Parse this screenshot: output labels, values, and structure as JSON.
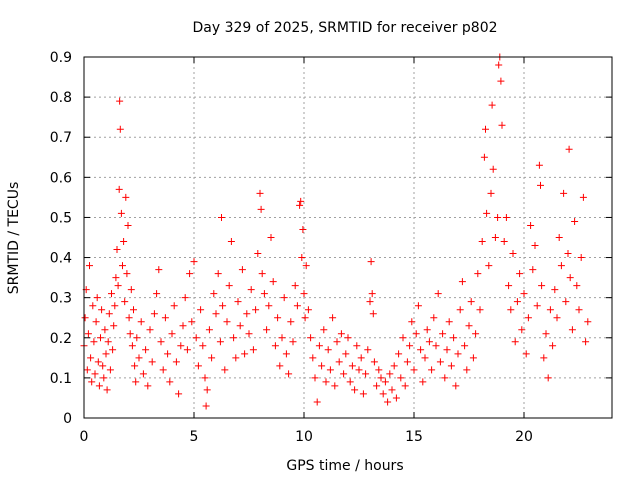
{
  "colors": {
    "marker": "#ff0000",
    "grid": "#a0a0a0",
    "axis": "#000000",
    "background": "#ffffff"
  },
  "chart_data": {
    "type": "scatter",
    "title": "Day 329 of 2025, SRMTID for receiver p802",
    "xlabel": "GPS time / hours",
    "ylabel": "SRMTID / TECUs",
    "xlim": [
      0,
      24
    ],
    "ylim": [
      0,
      0.9
    ],
    "xticks": [
      0,
      5,
      10,
      15,
      20
    ],
    "xtick_labels": [
      "0",
      "5",
      "10",
      "15",
      "20"
    ],
    "yticks": [
      0,
      0.1,
      0.2,
      0.3,
      0.4,
      0.5,
      0.6,
      0.7,
      0.8,
      0.9
    ],
    "ytick_labels": [
      "0",
      "0.1",
      "0.2",
      "0.3",
      "0.4",
      "0.5",
      "0.6",
      "0.7",
      "0.8",
      "0.9"
    ],
    "grid": true,
    "marker": "plus",
    "series": [
      {
        "name": "SRMTID",
        "points": [
          [
            0.0,
            0.18
          ],
          [
            0.05,
            0.25
          ],
          [
            0.1,
            0.32
          ],
          [
            0.15,
            0.12
          ],
          [
            0.2,
            0.21
          ],
          [
            0.25,
            0.38
          ],
          [
            0.3,
            0.15
          ],
          [
            0.35,
            0.09
          ],
          [
            0.4,
            0.28
          ],
          [
            0.45,
            0.19
          ],
          [
            0.5,
            0.11
          ],
          [
            0.55,
            0.24
          ],
          [
            0.6,
            0.3
          ],
          [
            0.65,
            0.14
          ],
          [
            0.7,
            0.08
          ],
          [
            0.75,
            0.2
          ],
          [
            0.8,
            0.27
          ],
          [
            0.85,
            0.13
          ],
          [
            0.9,
            0.1
          ],
          [
            0.95,
            0.22
          ],
          [
            1.0,
            0.16
          ],
          [
            1.05,
            0.07
          ],
          [
            1.1,
            0.19
          ],
          [
            1.15,
            0.26
          ],
          [
            1.2,
            0.12
          ],
          [
            1.25,
            0.31
          ],
          [
            1.3,
            0.17
          ],
          [
            1.35,
            0.23
          ],
          [
            1.4,
            0.28
          ],
          [
            1.45,
            0.35
          ],
          [
            1.5,
            0.42
          ],
          [
            1.55,
            0.33
          ],
          [
            1.6,
            0.57
          ],
          [
            1.62,
            0.79
          ],
          [
            1.65,
            0.72
          ],
          [
            1.7,
            0.51
          ],
          [
            1.75,
            0.38
          ],
          [
            1.8,
            0.44
          ],
          [
            1.85,
            0.29
          ],
          [
            1.9,
            0.55
          ],
          [
            1.95,
            0.36
          ],
          [
            2.0,
            0.48
          ],
          [
            2.05,
            0.25
          ],
          [
            2.1,
            0.21
          ],
          [
            2.15,
            0.32
          ],
          [
            2.2,
            0.18
          ],
          [
            2.25,
            0.27
          ],
          [
            2.3,
            0.13
          ],
          [
            2.35,
            0.09
          ],
          [
            2.4,
            0.2
          ],
          [
            2.5,
            0.15
          ],
          [
            2.6,
            0.24
          ],
          [
            2.7,
            0.11
          ],
          [
            2.8,
            0.17
          ],
          [
            2.9,
            0.08
          ],
          [
            3.0,
            0.22
          ],
          [
            3.1,
            0.14
          ],
          [
            3.2,
            0.26
          ],
          [
            3.3,
            0.31
          ],
          [
            3.4,
            0.37
          ],
          [
            3.5,
            0.19
          ],
          [
            3.6,
            0.12
          ],
          [
            3.7,
            0.25
          ],
          [
            3.8,
            0.16
          ],
          [
            3.9,
            0.09
          ],
          [
            4.0,
            0.21
          ],
          [
            4.1,
            0.28
          ],
          [
            4.2,
            0.14
          ],
          [
            4.3,
            0.06
          ],
          [
            4.4,
            0.18
          ],
          [
            4.5,
            0.23
          ],
          [
            4.6,
            0.3
          ],
          [
            4.7,
            0.17
          ],
          [
            4.8,
            0.36
          ],
          [
            4.9,
            0.24
          ],
          [
            5.0,
            0.39
          ],
          [
            5.1,
            0.2
          ],
          [
            5.2,
            0.13
          ],
          [
            5.3,
            0.27
          ],
          [
            5.4,
            0.18
          ],
          [
            5.5,
            0.1
          ],
          [
            5.55,
            0.03
          ],
          [
            5.6,
            0.07
          ],
          [
            5.7,
            0.22
          ],
          [
            5.8,
            0.15
          ],
          [
            5.9,
            0.31
          ],
          [
            6.0,
            0.26
          ],
          [
            6.1,
            0.36
          ],
          [
            6.2,
            0.19
          ],
          [
            6.25,
            0.5
          ],
          [
            6.3,
            0.28
          ],
          [
            6.4,
            0.12
          ],
          [
            6.5,
            0.24
          ],
          [
            6.6,
            0.33
          ],
          [
            6.7,
            0.44
          ],
          [
            6.8,
            0.2
          ],
          [
            6.9,
            0.15
          ],
          [
            7.0,
            0.29
          ],
          [
            7.1,
            0.23
          ],
          [
            7.2,
            0.37
          ],
          [
            7.3,
            0.16
          ],
          [
            7.4,
            0.26
          ],
          [
            7.5,
            0.21
          ],
          [
            7.6,
            0.32
          ],
          [
            7.7,
            0.17
          ],
          [
            7.8,
            0.27
          ],
          [
            7.9,
            0.41
          ],
          [
            8.0,
            0.56
          ],
          [
            8.05,
            0.52
          ],
          [
            8.1,
            0.36
          ],
          [
            8.2,
            0.31
          ],
          [
            8.3,
            0.22
          ],
          [
            8.4,
            0.28
          ],
          [
            8.5,
            0.45
          ],
          [
            8.6,
            0.34
          ],
          [
            8.7,
            0.18
          ],
          [
            8.8,
            0.25
          ],
          [
            8.9,
            0.13
          ],
          [
            9.0,
            0.2
          ],
          [
            9.1,
            0.3
          ],
          [
            9.2,
            0.16
          ],
          [
            9.3,
            0.11
          ],
          [
            9.4,
            0.24
          ],
          [
            9.5,
            0.19
          ],
          [
            9.6,
            0.33
          ],
          [
            9.7,
            0.28
          ],
          [
            9.8,
            0.53
          ],
          [
            9.85,
            0.54
          ],
          [
            9.9,
            0.4
          ],
          [
            9.95,
            0.47
          ],
          [
            10.0,
            0.31
          ],
          [
            10.05,
            0.25
          ],
          [
            10.1,
            0.38
          ],
          [
            10.2,
            0.27
          ],
          [
            10.3,
            0.2
          ],
          [
            10.4,
            0.15
          ],
          [
            10.5,
            0.1
          ],
          [
            10.6,
            0.04
          ],
          [
            10.7,
            0.18
          ],
          [
            10.8,
            0.13
          ],
          [
            10.9,
            0.22
          ],
          [
            11.0,
            0.09
          ],
          [
            11.1,
            0.17
          ],
          [
            11.2,
            0.12
          ],
          [
            11.3,
            0.25
          ],
          [
            11.4,
            0.08
          ],
          [
            11.5,
            0.19
          ],
          [
            11.6,
            0.14
          ],
          [
            11.7,
            0.21
          ],
          [
            11.8,
            0.11
          ],
          [
            11.9,
            0.16
          ],
          [
            12.0,
            0.2
          ],
          [
            12.1,
            0.09
          ],
          [
            12.2,
            0.13
          ],
          [
            12.3,
            0.07
          ],
          [
            12.4,
            0.18
          ],
          [
            12.5,
            0.12
          ],
          [
            12.6,
            0.15
          ],
          [
            12.7,
            0.06
          ],
          [
            12.8,
            0.11
          ],
          [
            12.9,
            0.17
          ],
          [
            13.0,
            0.29
          ],
          [
            13.05,
            0.39
          ],
          [
            13.1,
            0.31
          ],
          [
            13.15,
            0.26
          ],
          [
            13.2,
            0.14
          ],
          [
            13.3,
            0.08
          ],
          [
            13.4,
            0.12
          ],
          [
            13.5,
            0.1
          ],
          [
            13.6,
            0.06
          ],
          [
            13.7,
            0.09
          ],
          [
            13.8,
            0.04
          ],
          [
            13.9,
            0.11
          ],
          [
            14.0,
            0.07
          ],
          [
            14.1,
            0.13
          ],
          [
            14.2,
            0.05
          ],
          [
            14.3,
            0.16
          ],
          [
            14.4,
            0.1
          ],
          [
            14.5,
            0.2
          ],
          [
            14.6,
            0.08
          ],
          [
            14.7,
            0.14
          ],
          [
            14.8,
            0.18
          ],
          [
            14.9,
            0.24
          ],
          [
            15.0,
            0.12
          ],
          [
            15.1,
            0.21
          ],
          [
            15.2,
            0.28
          ],
          [
            15.3,
            0.17
          ],
          [
            15.4,
            0.09
          ],
          [
            15.5,
            0.15
          ],
          [
            15.6,
            0.22
          ],
          [
            15.7,
            0.19
          ],
          [
            15.8,
            0.12
          ],
          [
            15.9,
            0.25
          ],
          [
            16.0,
            0.18
          ],
          [
            16.1,
            0.31
          ],
          [
            16.2,
            0.14
          ],
          [
            16.3,
            0.21
          ],
          [
            16.4,
            0.1
          ],
          [
            16.5,
            0.17
          ],
          [
            16.6,
            0.24
          ],
          [
            16.7,
            0.13
          ],
          [
            16.8,
            0.2
          ],
          [
            16.9,
            0.08
          ],
          [
            17.0,
            0.16
          ],
          [
            17.1,
            0.27
          ],
          [
            17.2,
            0.34
          ],
          [
            17.3,
            0.18
          ],
          [
            17.4,
            0.12
          ],
          [
            17.5,
            0.23
          ],
          [
            17.6,
            0.29
          ],
          [
            17.7,
            0.15
          ],
          [
            17.8,
            0.21
          ],
          [
            17.9,
            0.36
          ],
          [
            18.0,
            0.27
          ],
          [
            18.1,
            0.44
          ],
          [
            18.2,
            0.65
          ],
          [
            18.25,
            0.72
          ],
          [
            18.3,
            0.51
          ],
          [
            18.4,
            0.38
          ],
          [
            18.5,
            0.56
          ],
          [
            18.55,
            0.78
          ],
          [
            18.6,
            0.62
          ],
          [
            18.7,
            0.45
          ],
          [
            18.8,
            0.5
          ],
          [
            18.85,
            0.88
          ],
          [
            18.9,
            0.9
          ],
          [
            18.95,
            0.84
          ],
          [
            19.0,
            0.73
          ],
          [
            19.1,
            0.44
          ],
          [
            19.2,
            0.5
          ],
          [
            19.3,
            0.33
          ],
          [
            19.4,
            0.27
          ],
          [
            19.5,
            0.41
          ],
          [
            19.6,
            0.19
          ],
          [
            19.7,
            0.29
          ],
          [
            19.8,
            0.36
          ],
          [
            19.9,
            0.22
          ],
          [
            20.0,
            0.31
          ],
          [
            20.1,
            0.16
          ],
          [
            20.2,
            0.25
          ],
          [
            20.3,
            0.48
          ],
          [
            20.4,
            0.37
          ],
          [
            20.5,
            0.43
          ],
          [
            20.6,
            0.28
          ],
          [
            20.7,
            0.63
          ],
          [
            20.75,
            0.58
          ],
          [
            20.8,
            0.33
          ],
          [
            20.9,
            0.15
          ],
          [
            21.0,
            0.21
          ],
          [
            21.1,
            0.1
          ],
          [
            21.2,
            0.27
          ],
          [
            21.3,
            0.18
          ],
          [
            21.4,
            0.32
          ],
          [
            21.5,
            0.25
          ],
          [
            21.6,
            0.45
          ],
          [
            21.7,
            0.38
          ],
          [
            21.8,
            0.56
          ],
          [
            21.9,
            0.29
          ],
          [
            22.0,
            0.41
          ],
          [
            22.05,
            0.67
          ],
          [
            22.1,
            0.35
          ],
          [
            22.2,
            0.22
          ],
          [
            22.3,
            0.49
          ],
          [
            22.4,
            0.33
          ],
          [
            22.5,
            0.27
          ],
          [
            22.6,
            0.4
          ],
          [
            22.7,
            0.55
          ],
          [
            22.8,
            0.19
          ],
          [
            22.9,
            0.24
          ]
        ]
      }
    ]
  }
}
